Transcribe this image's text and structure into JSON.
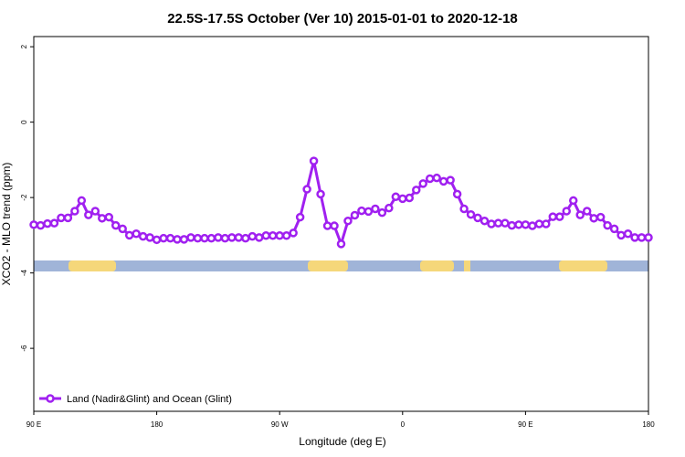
{
  "chart_data": {
    "type": "line",
    "title": "22.5S-17.5S October (Ver 10)   2015-01-01 to 2020-12-18",
    "x_label": "Longitude (deg E)",
    "y_label": "XCO2 - MLO trend (ppm)",
    "xlim": [
      90,
      540
    ],
    "ylim": [
      -7.67,
      2.27
    ],
    "xticks": [
      {
        "value": 90,
        "label": "90 E"
      },
      180,
      {
        "value": 270,
        "label": "90 W"
      },
      {
        "value": 360,
        "label": "0"
      },
      {
        "value": 450,
        "label": "90 E"
      },
      {
        "value": 540,
        "label": "180"
      }
    ],
    "yticks": [
      2,
      0,
      -2,
      -4,
      -6
    ],
    "legend": "bottom-left",
    "x": [
      90,
      95,
      100,
      105,
      110,
      115,
      120,
      125,
      130,
      135,
      140,
      145,
      150,
      155,
      160,
      165,
      170,
      175,
      180,
      185,
      190,
      195,
      200,
      205,
      210,
      215,
      220,
      225,
      230,
      235,
      240,
      245,
      250,
      255,
      260,
      265,
      270,
      275,
      280,
      285,
      290,
      295,
      300,
      305,
      310,
      315,
      320,
      325,
      330,
      335,
      340,
      345,
      350,
      355,
      360,
      365,
      370,
      375,
      380,
      385,
      390,
      395,
      400,
      405,
      410,
      415,
      420,
      425,
      430,
      435,
      440,
      445,
      450,
      455,
      460,
      465,
      470,
      475,
      480,
      485,
      490,
      495,
      500,
      505,
      510,
      515,
      520,
      525,
      530,
      535,
      540
    ],
    "series": [
      {
        "name": "Land (Nadir&Glint) and Ocean (Glint)",
        "color": "#a020f0",
        "values": [
          -2.72,
          -2.74,
          -2.69,
          -2.68,
          -2.54,
          -2.54,
          -2.36,
          -2.08,
          -2.46,
          -2.36,
          -2.55,
          -2.52,
          -2.74,
          -2.83,
          -3.0,
          -2.96,
          -3.03,
          -3.06,
          -3.12,
          -3.08,
          -3.08,
          -3.11,
          -3.11,
          -3.06,
          -3.08,
          -3.08,
          -3.08,
          -3.06,
          -3.08,
          -3.06,
          -3.06,
          -3.08,
          -3.03,
          -3.06,
          -3.01,
          -3.01,
          -3.01,
          -3.01,
          -2.94,
          -2.52,
          -1.78,
          -1.03,
          -1.91,
          -2.75,
          -2.75,
          -3.23,
          -2.62,
          -2.47,
          -2.35,
          -2.37,
          -2.3,
          -2.4,
          -2.28,
          -1.98,
          -2.03,
          -2.01,
          -1.8,
          -1.63,
          -1.5,
          -1.48,
          -1.57,
          -1.54,
          -1.91,
          -2.3,
          -2.45,
          -2.54,
          -2.62,
          -2.7,
          -2.68,
          -2.68,
          -2.74,
          -2.72,
          -2.72,
          -2.75,
          -2.7,
          -2.7,
          -2.51,
          -2.51,
          -2.36,
          -2.08,
          -2.46,
          -2.36,
          -2.55,
          -2.52,
          -2.74,
          -2.83,
          -3.0,
          -2.96,
          -3.06,
          -3.06,
          -3.06
        ]
      }
    ]
  }
}
